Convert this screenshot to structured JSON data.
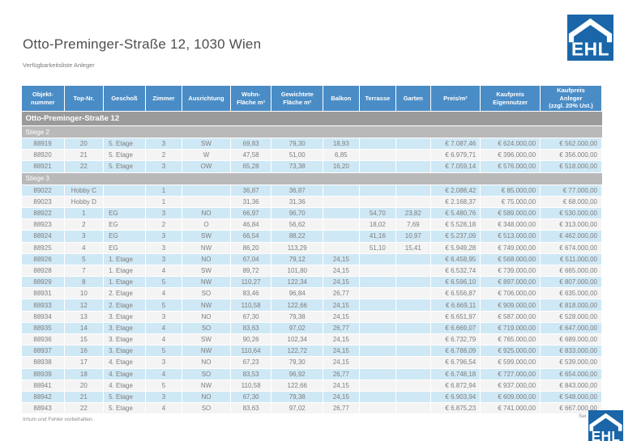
{
  "header": {
    "title": "Otto-Preminger-Straße 12, 1030 Wien",
    "subtitle": "Verfügbarkeitsliste Anleger",
    "logo_text": "EHL"
  },
  "colors": {
    "table_header_blue": "#4a8cc6",
    "row_blue": "#cfe8f5",
    "row_light": "#f4f4f4",
    "group_gray": "#9b9b9b",
    "subgroup_gray": "#b9b9b9",
    "logo_blue": "#1a66a8"
  },
  "table": {
    "columns": [
      "Objekt-\nnummer",
      "Top-Nr.",
      "Geschoß",
      "Zimmer",
      "Ausrichtung",
      "Wohn-\nFläche m²",
      "Gewichtete\nFläche m²",
      "Balkon",
      "Terrasse",
      "Garten",
      "Preis/m²",
      "Kaufpreis\nEigennutzer",
      "Kaufpreis\nAnleger\n(zzgl. 20% Ust.)"
    ],
    "group_label": "Otto-Preminger-Straße 12",
    "sections": [
      {
        "label": "Stiege 2",
        "rows": [
          [
            "88919",
            "20",
            "5. Etage",
            "3",
            "SW",
            "69,83",
            "79,30",
            "18,93",
            "",
            "",
            "€ 7.087,46",
            "€ 624.000,00",
            "€ 562.000,00"
          ],
          [
            "88920",
            "21",
            "5. Etage",
            "2",
            "W",
            "47,58",
            "51,00",
            "6,85",
            "",
            "",
            "€ 6.979,71",
            "€ 396.000,00",
            "€ 356.000,00"
          ],
          [
            "88921",
            "22",
            "5. Etage",
            "3",
            "OW",
            "65,28",
            "73,38",
            "16,20",
            "",
            "",
            "€ 7.059,14",
            "€ 576.000,00",
            "€ 518.000,00"
          ]
        ]
      },
      {
        "label": "Stiege 3",
        "rows": [
          [
            "89022",
            "Hobby C",
            "",
            "1",
            "",
            "36,87",
            "36,87",
            "",
            "",
            "",
            "€ 2.088,42",
            "€ 85.000,00",
            "€ 77.000,00"
          ],
          [
            "89023",
            "Hobby D",
            "",
            "1",
            "",
            "31,36",
            "31,36",
            "",
            "",
            "",
            "€ 2.168,37",
            "€ 75.000,00",
            "€ 68.000,00"
          ],
          [
            "88922",
            "1",
            "EG",
            "3",
            "NO",
            "66,97",
            "96,70",
            "",
            "54,70",
            "23,82",
            "€ 5.480,76",
            "€ 589.000,00",
            "€ 530.000,00"
          ],
          [
            "88923",
            "2",
            "EG",
            "2",
            "O",
            "46,84",
            "56,62",
            "",
            "18,02",
            "7,69",
            "€ 5.528,18",
            "€ 348.000,00",
            "€ 313.000,00"
          ],
          [
            "88924",
            "3",
            "EG",
            "3",
            "SW",
            "66,54",
            "88,22",
            "",
            "41,16",
            "10,97",
            "€ 5.237,09",
            "€ 513.000,00",
            "€ 462.000,00"
          ],
          [
            "88925",
            "4",
            "EG",
            "3",
            "NW",
            "86,20",
            "113,29",
            "",
            "51,10",
            "15,41",
            "€ 5.949,28",
            "€ 749.000,00",
            "€ 674.000,00"
          ],
          [
            "88926",
            "5",
            "1. Etage",
            "3",
            "NO",
            "67,04",
            "79,12",
            "24,15",
            "",
            "",
            "€ 6.458,95",
            "€ 568.000,00",
            "€ 511.000,00"
          ],
          [
            "88928",
            "7",
            "1. Etage",
            "4",
            "SW",
            "89,72",
            "101,80",
            "24,15",
            "",
            "",
            "€ 6.532,74",
            "€ 739.000,00",
            "€ 665.000,00"
          ],
          [
            "88929",
            "8",
            "1. Etage",
            "5",
            "NW",
            "110,27",
            "122,34",
            "24,15",
            "",
            "",
            "€ 6.596,10",
            "€ 897.000,00",
            "€ 807.000,00"
          ],
          [
            "88931",
            "10",
            "2. Etage",
            "4",
            "SO",
            "83,46",
            "96,84",
            "26,77",
            "",
            "",
            "€ 6.556,87",
            "€ 706.000,00",
            "€ 635.000,00"
          ],
          [
            "88933",
            "12",
            "2. Etage",
            "5",
            "NW",
            "110,58",
            "122,66",
            "24,15",
            "",
            "",
            "€ 6.669,11",
            "€ 909.000,00",
            "€ 818.000,00"
          ],
          [
            "88934",
            "13",
            "3. Etage",
            "3",
            "NO",
            "67,30",
            "79,38",
            "24,15",
            "",
            "",
            "€ 6.651,97",
            "€ 587.000,00",
            "€ 528.000,00"
          ],
          [
            "88935",
            "14",
            "3. Etage",
            "4",
            "SO",
            "83,63",
            "97,02",
            "26,77",
            "",
            "",
            "€ 6.669,07",
            "€ 719.000,00",
            "€ 647.000,00"
          ],
          [
            "88936",
            "15",
            "3. Etage",
            "4",
            "SW",
            "90,26",
            "102,34",
            "24,15",
            "",
            "",
            "€ 6.732,79",
            "€ 765.000,00",
            "€ 689.000,00"
          ],
          [
            "88937",
            "16",
            "3. Etage",
            "5",
            "NW",
            "110,64",
            "122,72",
            "24,15",
            "",
            "",
            "€ 6.788,09",
            "€ 925.000,00",
            "€ 833.000,00"
          ],
          [
            "88938",
            "17",
            "4. Etage",
            "3",
            "NO",
            "67,23",
            "79,30",
            "24,15",
            "",
            "",
            "€ 6.796,54",
            "€ 599.000,00",
            "€ 539.000,00"
          ],
          [
            "88939",
            "18",
            "4. Etage",
            "4",
            "SO",
            "83,53",
            "96,92",
            "26,77",
            "",
            "",
            "€ 6.748,18",
            "€ 727.000,00",
            "€ 654.000,00"
          ],
          [
            "88941",
            "20",
            "4. Etage",
            "5",
            "NW",
            "110,58",
            "122,66",
            "24,15",
            "",
            "",
            "€ 6.872,94",
            "€ 937.000,00",
            "€ 843.000,00"
          ],
          [
            "88942",
            "21",
            "5. Etage",
            "3",
            "NO",
            "67,30",
            "79,38",
            "24,15",
            "",
            "",
            "€ 6.903,94",
            "€ 609.000,00",
            "€ 548.000,00"
          ],
          [
            "88943",
            "22",
            "5. Etage",
            "4",
            "SO",
            "83,63",
            "97,02",
            "26,77",
            "",
            "",
            "€ 6.875,23",
            "€ 741.000,00",
            "€ 667.000,00"
          ]
        ]
      }
    ]
  },
  "footer": {
    "disclaimer": "Irrtum und Fehler vorbehalten.",
    "page_fragment": "Sei"
  }
}
